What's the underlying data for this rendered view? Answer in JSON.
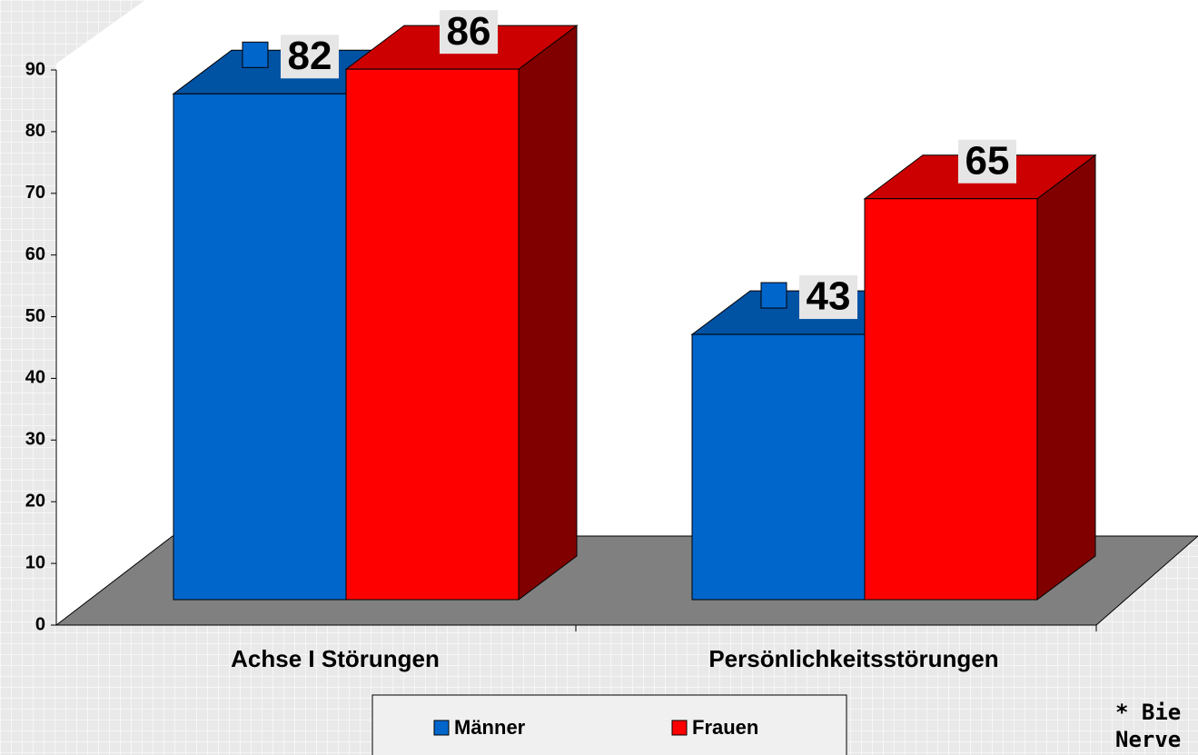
{
  "chart_data": {
    "type": "bar3d",
    "categories": [
      "Achse I Störungen",
      "Persönlichkeitsstörungen"
    ],
    "series": [
      {
        "name": "Männer",
        "color": "#0066cc",
        "values": [
          82,
          43
        ]
      },
      {
        "name": "Frauen",
        "color": "#ff0000",
        "values": [
          86,
          65
        ]
      }
    ],
    "ylim": [
      0,
      90
    ],
    "yticks": [
      0,
      10,
      20,
      30,
      40,
      50,
      60,
      70,
      80,
      90
    ],
    "legend": "bottom",
    "footnote": [
      "* Bie",
      "Nerve"
    ]
  }
}
